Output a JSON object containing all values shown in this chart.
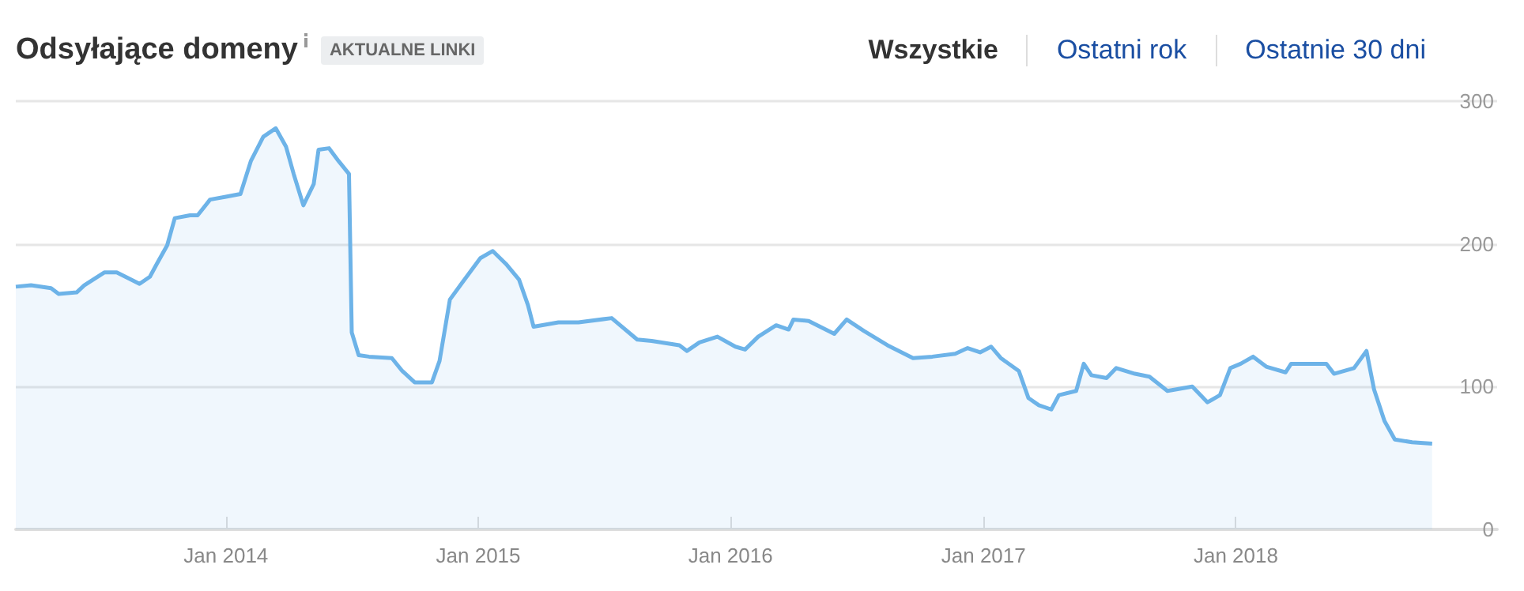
{
  "chart_data": {
    "type": "area",
    "title": "Odsyłające domeny",
    "annotations": [
      "AKTUALNE LINKI",
      "Wszystkie",
      "Ostatni rok",
      "Ostatnie 30 dni"
    ],
    "x": [
      "2013-03-03",
      "2013-03-25",
      "2013-04-23",
      "2013-05-04",
      "2013-05-30",
      "2013-06-10",
      "2013-07-09",
      "2013-07-27",
      "2013-08-29",
      "2013-09-13",
      "2013-09-23",
      "2013-10-08",
      "2013-10-19",
      "2013-11-10",
      "2013-11-21",
      "2013-12-09",
      "2014-01-01",
      "2014-01-22",
      "2014-02-06",
      "2014-02-24",
      "2014-03-14",
      "2014-03-29",
      "2014-04-09",
      "2014-04-23",
      "2014-05-08",
      "2014-05-15",
      "2014-05-30",
      "2014-06-13",
      "2014-06-28",
      "2014-07-02",
      "2014-07-12",
      "2014-07-27",
      "2014-08-29",
      "2014-09-13",
      "2014-10-01",
      "2014-10-26",
      "2014-11-06",
      "2014-11-21",
      "2014-12-09",
      "2015-01-04",
      "2015-01-22",
      "2015-02-10",
      "2015-03-01",
      "2015-03-14",
      "2015-03-22",
      "2015-04-27",
      "2015-05-26",
      "2015-07-13",
      "2015-08-19",
      "2015-09-09",
      "2015-10-19",
      "2015-10-30",
      "2015-11-17",
      "2015-12-13",
      "2016-01-08",
      "2016-01-22",
      "2016-02-10",
      "2016-03-07",
      "2016-03-25",
      "2016-04-01",
      "2016-04-23",
      "2016-05-30",
      "2016-06-17",
      "2016-07-12",
      "2016-08-15",
      "2016-09-21",
      "2016-10-19",
      "2016-11-21",
      "2016-12-09",
      "2016-12-27",
      "2017-01-12",
      "2017-01-26",
      "2017-02-21",
      "2017-03-07",
      "2017-03-22",
      "2017-04-09",
      "2017-04-20",
      "2017-05-15",
      "2017-05-26",
      "2017-06-06",
      "2017-06-28",
      "2017-07-12",
      "2017-08-08",
      "2017-08-29",
      "2017-09-24",
      "2017-10-30",
      "2017-11-21",
      "2017-12-09",
      "2017-12-24",
      "2018-01-08",
      "2018-01-26",
      "2018-02-14",
      "2018-03-14",
      "2018-03-22",
      "2018-04-16",
      "2018-05-12",
      "2018-05-23",
      "2018-06-21",
      "2018-07-09",
      "2018-07-20",
      "2018-08-04",
      "2018-08-19",
      "2018-09-13",
      "2018-10-12"
    ],
    "series": [
      {
        "color": "#6db3e8",
        "values": [
          170,
          171,
          169,
          165,
          166,
          171,
          180,
          180,
          172,
          177,
          186,
          199,
          218,
          220,
          220,
          231,
          233,
          235,
          258,
          275,
          281,
          268,
          249,
          227,
          242,
          266,
          267,
          258,
          249,
          138,
          122,
          121,
          120,
          111,
          103,
          103,
          118,
          161,
          173,
          190,
          195,
          186,
          175,
          157,
          142,
          145,
          145,
          148,
          133,
          132,
          129,
          125,
          131,
          135,
          128,
          126,
          135,
          143,
          140,
          147,
          146,
          137,
          147,
          139,
          129,
          120,
          121,
          123,
          127,
          124,
          128,
          120,
          111,
          92,
          87,
          84,
          94,
          97,
          116,
          108,
          106,
          113,
          109,
          107,
          97,
          100,
          89,
          94,
          113,
          116,
          121,
          114,
          110,
          116,
          116,
          116,
          109,
          113,
          125,
          98,
          76,
          63,
          61,
          60
        ]
      }
    ],
    "xlim": [
      "2013-03-03",
      "2019-01-14"
    ],
    "xticks": [
      {
        "value": "2014-01-01",
        "label": "Jan 2014"
      },
      {
        "value": "2015-01-01",
        "label": "Jan 2015"
      },
      {
        "value": "2016-01-01",
        "label": "Jan 2016"
      },
      {
        "value": "2017-01-01",
        "label": "Jan 2017"
      },
      {
        "value": "2018-01-01",
        "label": "Jan 2018"
      }
    ],
    "ylim": [
      0,
      300
    ],
    "yticks": [
      0,
      100,
      200,
      300
    ],
    "grid": "y"
  }
}
